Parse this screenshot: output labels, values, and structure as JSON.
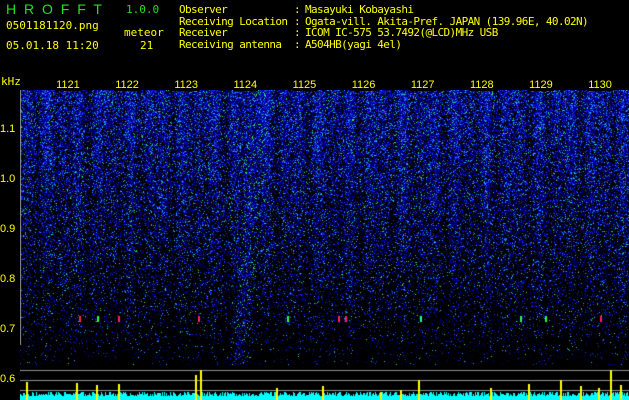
{
  "header": {
    "app_title": "H R O F F T",
    "version": "1.0.0",
    "filename": "0501181120.png",
    "datetime": "05.01.18 11:20",
    "meteor_label": "meteor",
    "meteor_count": "21",
    "info": [
      {
        "label": "Observer",
        "value": "Masayuki Kobayashi"
      },
      {
        "label": "Receiving Location",
        "value": "Ogata-vill. Akita-Pref. JAPAN (139.96E, 40.02N)"
      },
      {
        "label": "Receiver",
        "value": "ICOM IC-575 53.7492(@LCD)MHz USB"
      },
      {
        "label": "Receiving antenna",
        "value": "A504HB(yagi 4el)"
      }
    ]
  },
  "chart_data": {
    "type": "heatmap",
    "ylabel": "kHz",
    "yticks": [
      "1.1",
      "1.0",
      "0.9",
      "0.8",
      "0.7",
      "0.6"
    ],
    "ylim": [
      0.56,
      1.18
    ],
    "xticks": [
      "1121",
      "1122",
      "1123",
      "1124",
      "1125",
      "1126",
      "1127",
      "1128",
      "1129",
      "1130"
    ],
    "xlim": [
      1120,
      1130.3
    ],
    "colors": {
      "background": "#000000",
      "noise": "#2040ff",
      "signal": "#40ff40",
      "echo": "#ff2060",
      "level": "#00ffff",
      "spike": "#ffff00"
    }
  }
}
